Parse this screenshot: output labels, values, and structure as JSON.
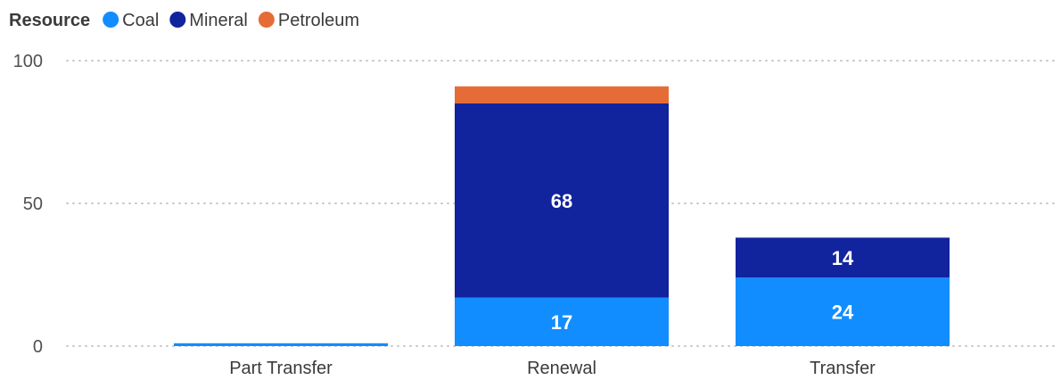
{
  "colors": {
    "Coal": "#118DFF",
    "Mineral": "#12239E",
    "Petroleum": "#E66C37"
  },
  "chart_data": {
    "type": "bar",
    "stacked": true,
    "legend_title": "Resource",
    "legend_position": "top-left",
    "categories": [
      "Part Transfer",
      "Renewal",
      "Transfer"
    ],
    "series": [
      {
        "name": "Coal",
        "values": [
          1,
          17,
          24
        ],
        "labels": [
          "",
          "17",
          "24"
        ]
      },
      {
        "name": "Mineral",
        "values": [
          0,
          68,
          14
        ],
        "labels": [
          "",
          "68",
          "14"
        ]
      },
      {
        "name": "Petroleum",
        "values": [
          0,
          6,
          0
        ],
        "labels": [
          "",
          "",
          ""
        ]
      }
    ],
    "yticks": [
      "0",
      "50",
      "100"
    ],
    "ylim": [
      0,
      100
    ],
    "grid": true
  }
}
